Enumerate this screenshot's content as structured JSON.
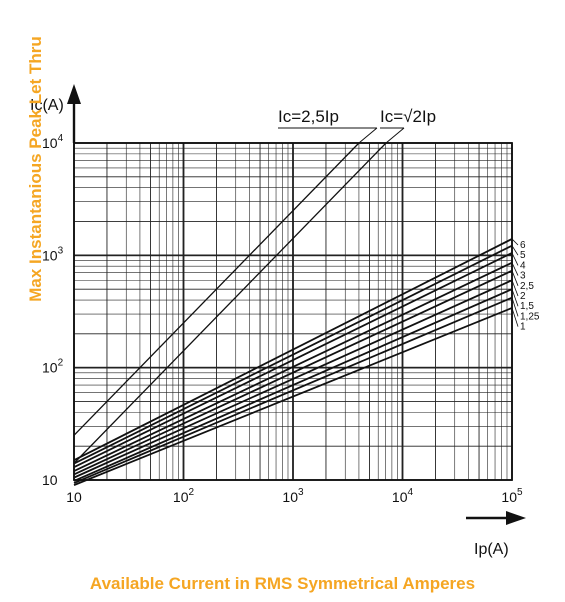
{
  "chart_data": {
    "type": "line",
    "xscale": "log",
    "yscale": "log",
    "xlim": [
      10,
      100000
    ],
    "ylim": [
      10,
      10000
    ],
    "grid": true,
    "x_ticks": [
      10,
      100,
      1000,
      10000,
      100000
    ],
    "y_ticks": [
      10,
      100,
      1000,
      10000
    ],
    "x_tick_labels": [
      {
        "base": "10",
        "exp": ""
      },
      {
        "base": "10",
        "exp": "2"
      },
      {
        "base": "10",
        "exp": "3"
      },
      {
        "base": "10",
        "exp": "4"
      },
      {
        "base": "10",
        "exp": "5"
      }
    ],
    "y_tick_labels": [
      {
        "base": "10",
        "exp": ""
      },
      {
        "base": "10",
        "exp": "2"
      },
      {
        "base": "10",
        "exp": "3"
      },
      {
        "base": "10",
        "exp": "4"
      }
    ],
    "x_axis_symbol": "Ip(A)",
    "y_axis_symbol": "Ic(A)",
    "xlabel": "Available Current in RMS Symmetrical Amperes",
    "ylabel": "Max Instantanious Peak Let Thru",
    "reference_lines": [
      {
        "name": "Ic=2,5Ip",
        "x": [
          10,
          4000
        ],
        "y": [
          25,
          10000
        ]
      },
      {
        "name": "Ic=√2Ip",
        "x": [
          10,
          7070
        ],
        "y": [
          14.1,
          10000
        ]
      }
    ],
    "series": [
      {
        "name": "6",
        "x": [
          10,
          100000
        ],
        "y": [
          15,
          1400
        ]
      },
      {
        "name": "5",
        "x": [
          10,
          100000
        ],
        "y": [
          14,
          1220
        ]
      },
      {
        "name": "4",
        "x": [
          10,
          100000
        ],
        "y": [
          13,
          1050
        ]
      },
      {
        "name": "3",
        "x": [
          10,
          100000
        ],
        "y": [
          12,
          860
        ]
      },
      {
        "name": "2,5",
        "x": [
          10,
          100000
        ],
        "y": [
          11.2,
          730
        ]
      },
      {
        "name": "2",
        "x": [
          10,
          100000
        ],
        "y": [
          10.5,
          600
        ]
      },
      {
        "name": "1,5",
        "x": [
          10,
          100000
        ],
        "y": [
          9.8,
          500
        ]
      },
      {
        "name": "1,25",
        "x": [
          10,
          100000
        ],
        "y": [
          9.4,
          420
        ]
      },
      {
        "name": "1",
        "x": [
          10,
          100000
        ],
        "y": [
          9,
          340
        ]
      }
    ]
  }
}
